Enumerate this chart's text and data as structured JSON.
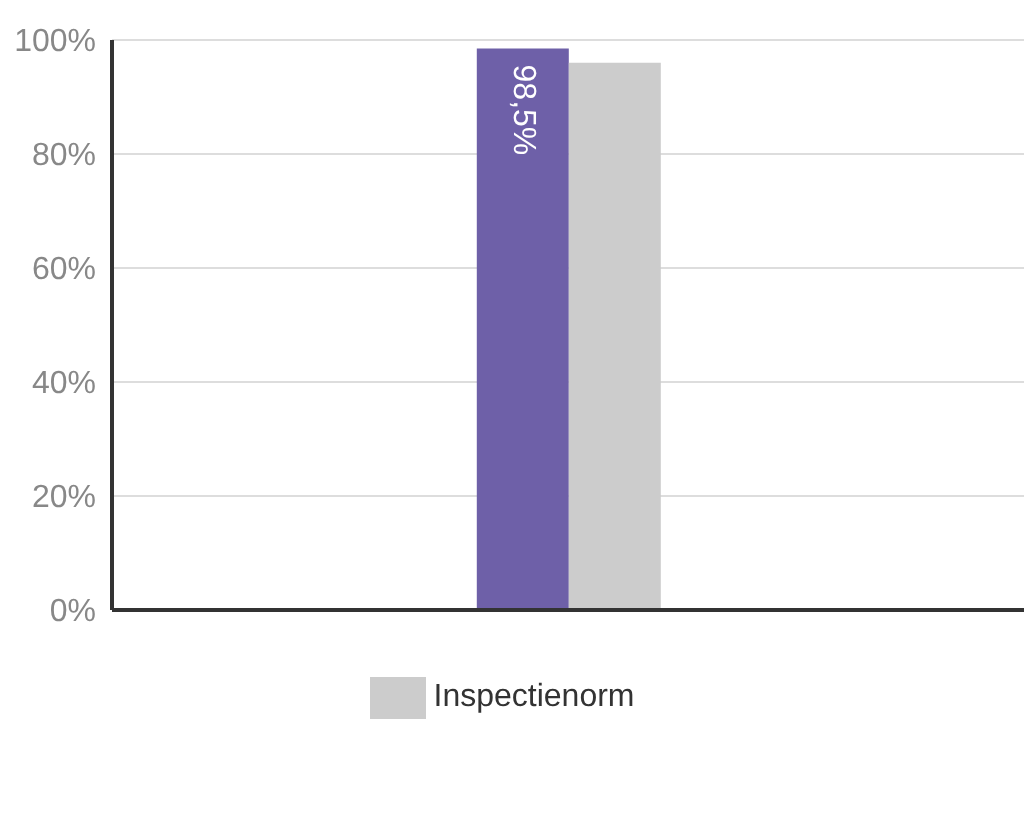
{
  "chart_data": {
    "type": "bar",
    "categories": [
      null
    ],
    "series": [
      {
        "color": "#6e60a8",
        "values": [
          98.5
        ],
        "value_labels": [
          "98,5%"
        ]
      },
      {
        "name": "Inspectienorm",
        "color": "#cccccc",
        "values": [
          96
        ]
      }
    ],
    "ylim": [
      0,
      100
    ],
    "yticks": [
      {
        "value": 0,
        "label": "0%"
      },
      {
        "value": 20,
        "label": "20%"
      },
      {
        "value": 40,
        "label": "40%"
      },
      {
        "value": 60,
        "label": "60%"
      },
      {
        "value": 80,
        "label": "80%"
      },
      {
        "value": 100,
        "label": "100%"
      }
    ],
    "grid": "y",
    "legend": "bottom",
    "tick_labels": "y"
  }
}
